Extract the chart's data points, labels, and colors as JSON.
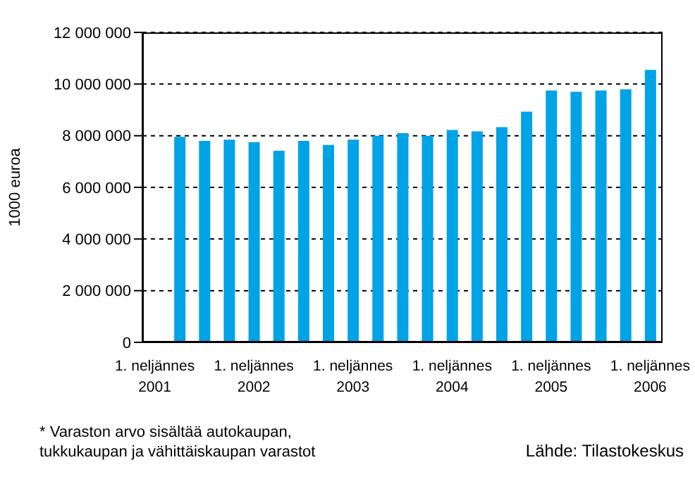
{
  "chart_data": {
    "type": "bar",
    "ylabel": "1000 euroa",
    "categories": [
      "1. neljännes\n2001",
      null,
      null,
      null,
      "1. neljännes\n2002",
      null,
      null,
      null,
      "1. neljännes\n2003",
      null,
      null,
      null,
      "1. neljännes\n2004",
      null,
      null,
      null,
      "1. neljännes\n2005",
      null,
      null,
      null,
      "1. neljännes\n2006"
    ],
    "values": [
      null,
      7960000,
      7800000,
      7850000,
      7750000,
      7420000,
      7800000,
      7640000,
      7850000,
      8000000,
      8100000,
      8000000,
      8220000,
      8170000,
      8330000,
      8930000,
      9750000,
      9700000,
      9750000,
      9800000,
      10550000
    ],
    "color": "#00a3e6",
    "ylim": [
      0,
      12000000
    ],
    "yticks": [
      {
        "value": 0,
        "label": "0"
      },
      {
        "value": 2000000,
        "label": "2 000 000"
      },
      {
        "value": 4000000,
        "label": "4 000 000"
      },
      {
        "value": 6000000,
        "label": "6 000 000"
      },
      {
        "value": 8000000,
        "label": "8 000 000"
      },
      {
        "value": 10000000,
        "label": "10 000 000"
      },
      {
        "value": 12000000,
        "label": "12 000 000"
      }
    ],
    "grid": "y",
    "annotations": [
      "* Varaston arvo sisältää autokaupan, tukkukaupan ja vähittäiskaupan varastot",
      "Lähde: Tilastokeskus"
    ]
  }
}
